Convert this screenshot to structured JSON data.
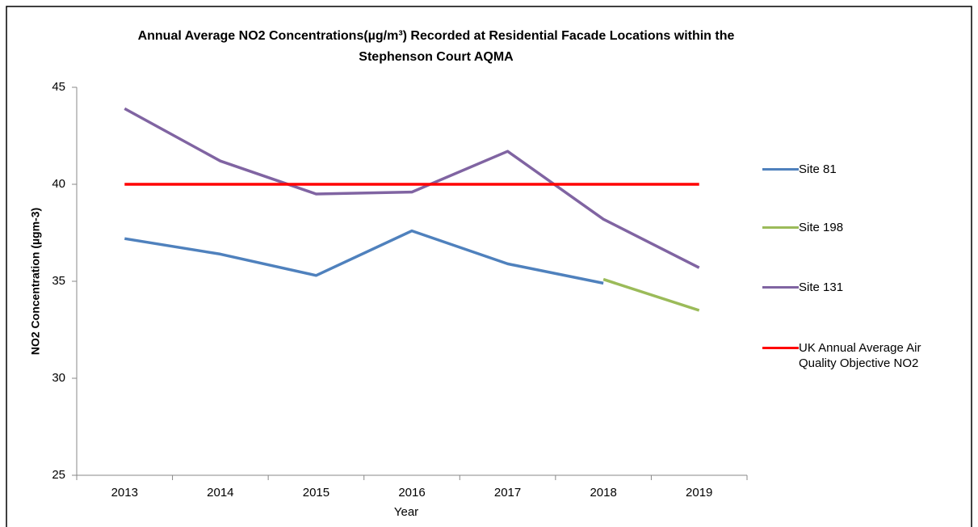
{
  "chart_data": {
    "type": "line",
    "title": [
      "Annual Average NO2 Concentrations(µg/m³) Recorded at Residential Facade Locations within the",
      "Stephenson Court AQMA"
    ],
    "x_label": "Year",
    "y_label": "NO2 Concentration (µgm-3)",
    "categories": [
      "2013",
      "2014",
      "2015",
      "2016",
      "2017",
      "2018",
      "2019"
    ],
    "series": [
      {
        "name": "Site 81",
        "color": "#4f81bd",
        "values": [
          37.2,
          36.4,
          35.3,
          37.6,
          35.9,
          34.9,
          null
        ]
      },
      {
        "name": "Site 198",
        "color": "#9bbb59",
        "values": [
          null,
          null,
          null,
          null,
          null,
          35.1,
          33.5
        ]
      },
      {
        "name": "Site 131",
        "color": "#8064a2",
        "values": [
          43.9,
          41.2,
          39.5,
          39.6,
          41.7,
          38.2,
          35.7
        ]
      },
      {
        "name": "UK Annual Average Air Quality Objective NO2",
        "color": "#ff0000",
        "values": [
          40,
          40,
          40,
          40,
          40,
          40,
          40
        ]
      }
    ],
    "ylim": [
      25,
      45
    ],
    "yticks": [
      25,
      30,
      35,
      40,
      45
    ],
    "grid": false,
    "legend": "right"
  }
}
